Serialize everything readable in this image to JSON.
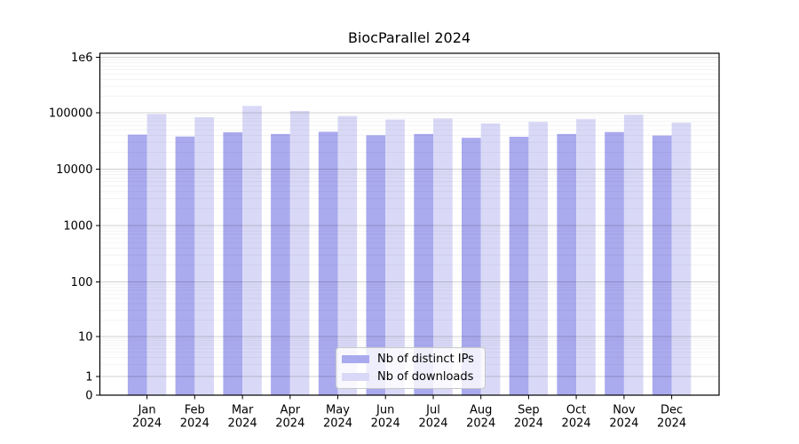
{
  "chart_data": {
    "type": "bar",
    "title": "BiocParallel 2024",
    "yscale": "log",
    "grid": true,
    "legend_position": "lower center",
    "categories": [
      "Jan 2024",
      "Feb 2024",
      "Mar 2024",
      "Apr 2024",
      "May 2024",
      "Jun 2024",
      "Jul 2024",
      "Aug 2024",
      "Sep 2024",
      "Oct 2024",
      "Nov 2024",
      "Dec 2024"
    ],
    "series": [
      {
        "name": "Nb of distinct IPs",
        "color": "#aaaaef",
        "values": [
          41000,
          38000,
          45000,
          42000,
          46000,
          40000,
          42000,
          36000,
          37500,
          42000,
          45500,
          39500
        ]
      },
      {
        "name": "Nb of downloads",
        "color": "#d9d9f7",
        "values": [
          95000,
          83000,
          133000,
          108000,
          87000,
          76000,
          79000,
          65000,
          69000,
          77000,
          92000,
          67000
        ]
      }
    ],
    "y_ticks": [
      {
        "label": "1e6",
        "value": 1000000
      },
      {
        "label": "100000",
        "value": 100000
      },
      {
        "label": "10000",
        "value": 10000
      },
      {
        "label": "1000",
        "value": 1000
      },
      {
        "label": "100",
        "value": 100
      },
      {
        "label": "10",
        "value": 10
      },
      {
        "label": "1",
        "value": 1
      },
      {
        "label": "0",
        "value": 0
      }
    ],
    "ylim": [
      0,
      1000000
    ],
    "xlabel": "",
    "ylabel": ""
  }
}
